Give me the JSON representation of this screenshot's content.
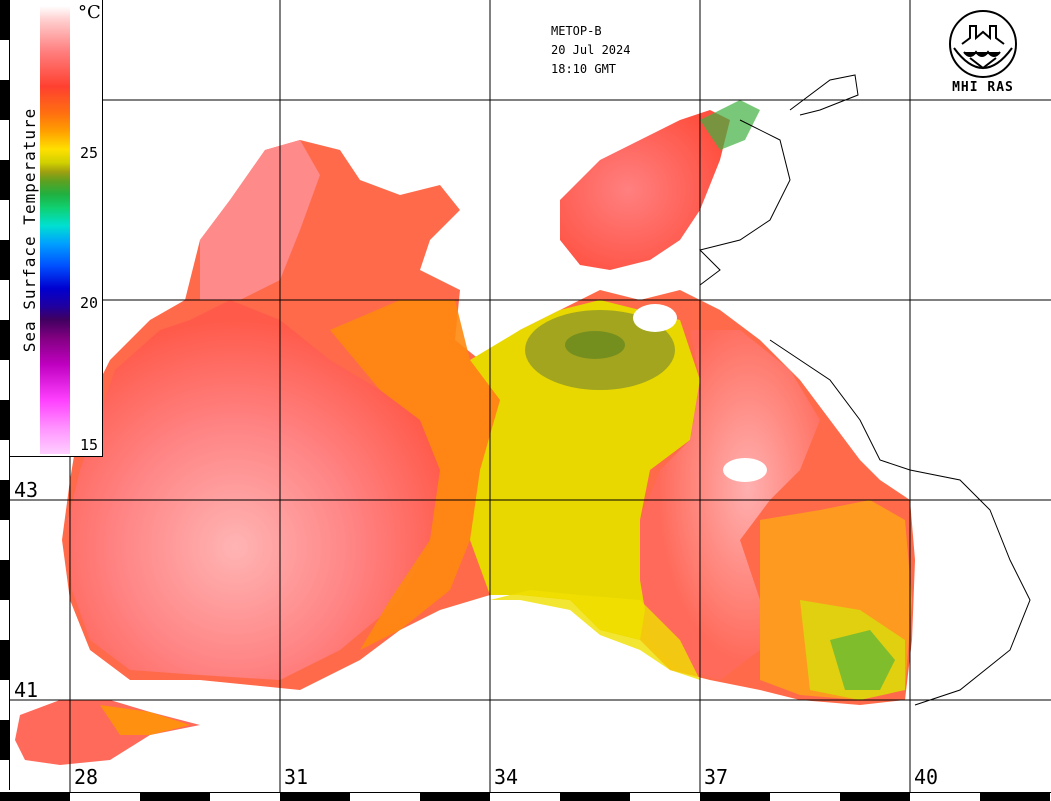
{
  "satellite": "METOP-B",
  "date": "20 Jul 2024",
  "time": "18:10 GMT",
  "organization": "MHI RAS",
  "colorbar": {
    "title": "Sea Surface Temperature",
    "unit": "°C",
    "ticks": [
      "25",
      "20",
      "15"
    ],
    "range": [
      15,
      30
    ]
  },
  "latitude_labels": [
    "43",
    "41"
  ],
  "longitude_labels": [
    "28",
    "31",
    "34",
    "37",
    "40"
  ],
  "colors": {
    "warm_pink": "#ff6b6b",
    "pale_pink": "#ffb0b0",
    "orange": "#ff8a10",
    "yellow": "#e8e000",
    "olive": "#9aa020",
    "green": "#20b040",
    "land": "#ffffff",
    "grid": "#000000"
  }
}
